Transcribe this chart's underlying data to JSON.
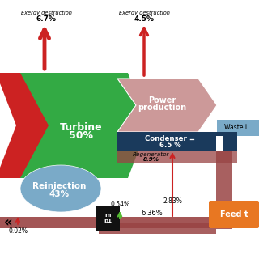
{
  "bg_color": "#ffffff",
  "colors": {
    "red": "#cc2222",
    "green": "#33aa44",
    "blue": "#336699",
    "light_blue": "#7aaac8",
    "dark_blue": "#1a3a5c",
    "light_pink": "#cc9999",
    "orange": "#e87722",
    "dark_red": "#994444",
    "light_green": "#88cc66",
    "black": "#111111",
    "white": "#ffffff"
  },
  "labels": {
    "turbine": "Turbine\n50%",
    "power_production": "Power\nproduction",
    "condenser": "Condenser =\n6.5 %",
    "regenerator": "Regenerator\n8.9%",
    "reinjection": "Reinjection\n43%",
    "exergy_dest1_title": "Exergy destruction",
    "exergy_dest1_pct": "6.7%",
    "exergy_dest2_title": "Exergy destruction",
    "exergy_dest2_pct": "4.5%",
    "waste_in": "Waste i",
    "feed_t": "Feed t",
    "pump_label": "m\np1",
    "pct_054": "0.54%",
    "pct_002": "0.02%",
    "pct_636": "6.36%",
    "pct_283": "2.83%"
  }
}
